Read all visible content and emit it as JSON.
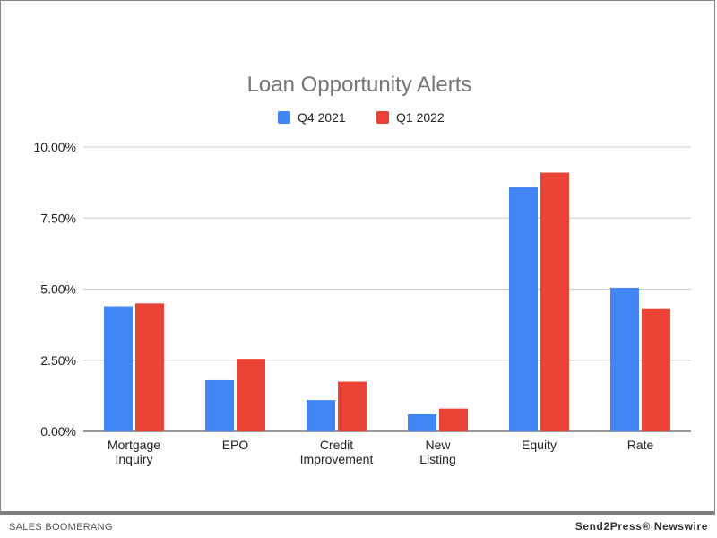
{
  "chart_data": {
    "type": "bar",
    "title": "Loan Opportunity Alerts",
    "categories": [
      [
        "Mortgage",
        "Inquiry"
      ],
      [
        "EPO"
      ],
      [
        "Credit",
        "Improvement"
      ],
      [
        "New",
        "Listing"
      ],
      [
        "Equity"
      ],
      [
        "Rate"
      ]
    ],
    "series": [
      {
        "name": "Q4 2021",
        "color": "#4285f4",
        "values": [
          4.4,
          1.8,
          1.1,
          0.6,
          8.6,
          5.05
        ]
      },
      {
        "name": "Q1 2022",
        "color": "#ea4335",
        "values": [
          4.5,
          2.55,
          1.75,
          0.8,
          9.1,
          4.3
        ]
      }
    ],
    "ylim": [
      0,
      10
    ],
    "yticks": [
      "0.00%",
      "2.50%",
      "5.00%",
      "7.50%",
      "10.00%"
    ],
    "legend": "top",
    "grid": true
  },
  "footer": {
    "left": "SALES BOOMERANG",
    "right": "Send2Press® Newswire"
  }
}
